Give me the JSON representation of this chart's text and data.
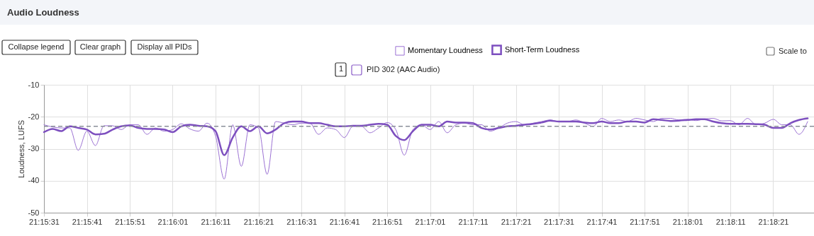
{
  "chart_data": {
    "type": "line",
    "title": "Audio Loudness",
    "ylabel": "Loudness, LUFS",
    "annotations": [
      "Collapse legend",
      "Clear graph",
      "Display all PIDs",
      "Scale to",
      "1",
      "PID 302 (AAC Audio)"
    ],
    "x": [
      21.25861,
      21.25917,
      21.25972,
      21.26028,
      21.26083,
      21.26139,
      21.26194,
      21.2625,
      21.26306,
      21.26361,
      21.26417,
      21.26472,
      21.26528,
      21.26583,
      21.26639,
      21.26694,
      21.2675,
      21.26806,
      21.26861,
      21.26917,
      21.26972,
      21.27028,
      21.27083,
      21.27139,
      21.27194,
      21.2725,
      21.27306,
      21.27361,
      21.27417,
      21.27472,
      21.27528,
      21.27583,
      21.27639,
      21.27694,
      21.2775,
      21.27806,
      21.27861,
      21.27917,
      21.27972,
      21.28028,
      21.28083,
      21.28139,
      21.28194,
      21.2825,
      21.28306,
      21.28361,
      21.28417,
      21.28472,
      21.28528,
      21.28583,
      21.28639,
      21.28694,
      21.2875,
      21.28806,
      21.28861,
      21.28917,
      21.28972,
      21.29028,
      21.29083,
      21.29139,
      21.29194,
      21.2925,
      21.29306,
      21.29361,
      21.29417,
      21.29472,
      21.29528,
      21.29583,
      21.29639,
      21.29694,
      21.2975,
      21.29806,
      21.29861,
      21.29917,
      21.29972,
      21.30028,
      21.30083,
      21.30139,
      21.30194,
      21.3025,
      21.30306,
      21.30361,
      21.30417,
      21.30472,
      21.30528,
      21.30583,
      21.30639,
      21.30694,
      21.3075,
      21.30806
    ],
    "series": [
      {
        "name": "Momentary Loudness",
        "color": "#9c72d4",
        "values": [
          -22.5,
          -23.2,
          -23.5,
          -23.5,
          -30.5,
          -24.5,
          -29.0,
          -22.8,
          -22.8,
          -24.0,
          -22.5,
          -22.5,
          -25.5,
          -23.5,
          -24.5,
          -24.0,
          -22.2,
          -23.8,
          -24.5,
          -22.0,
          -26.0,
          -39.5,
          -22.5,
          -35.5,
          -22.5,
          -23.5,
          -38.0,
          -21.5,
          -22.0,
          -22.5,
          -22.0,
          -22.0,
          -25.5,
          -23.5,
          -24.0,
          -26.5,
          -23.0,
          -23.0,
          -25.0,
          -23.5,
          -21.8,
          -24.0,
          -32.0,
          -24.0,
          -22.5,
          -24.0,
          -21.5,
          -25.0,
          -22.5,
          -22.0,
          -22.5,
          -22.5,
          -24.5,
          -23.5,
          -22.0,
          -21.5,
          -22.5,
          -22.0,
          -21.5,
          -21.0,
          -21.5,
          -21.5,
          -21.0,
          -22.0,
          -23.0,
          -20.5,
          -21.5,
          -21.0,
          -21.5,
          -20.5,
          -21.0,
          -21.5,
          -20.5,
          -20.5,
          -21.0,
          -20.8,
          -21.2,
          -20.7,
          -20.5,
          -21.3,
          -21.2,
          -22.5,
          -20.5,
          -22.5,
          -22.0,
          -20.8,
          -22.5,
          -22.5,
          -25.5,
          -21.5
        ]
      },
      {
        "name": "Short-Term Loudness",
        "color": "#7d4fbf",
        "values": [
          -24.8,
          -23.8,
          -24.5,
          -23.0,
          -23.5,
          -24.0,
          -25.5,
          -25.3,
          -24.0,
          -23.0,
          -22.7,
          -23.5,
          -23.8,
          -23.8,
          -24.0,
          -24.8,
          -23.0,
          -22.5,
          -22.8,
          -23.0,
          -24.5,
          -32.0,
          -26.5,
          -23.0,
          -24.5,
          -23.0,
          -25.2,
          -24.0,
          -22.0,
          -21.5,
          -21.5,
          -22.0,
          -22.0,
          -22.5,
          -23.0,
          -23.0,
          -22.8,
          -22.8,
          -22.5,
          -22.2,
          -22.5,
          -26.0,
          -27.3,
          -24.5,
          -22.5,
          -22.5,
          -23.0,
          -21.5,
          -21.8,
          -21.8,
          -22.0,
          -23.5,
          -24.0,
          -23.5,
          -23.0,
          -22.8,
          -22.5,
          -22.2,
          -21.8,
          -21.2,
          -21.5,
          -21.5,
          -21.5,
          -21.8,
          -22.0,
          -21.5,
          -22.0,
          -22.0,
          -21.5,
          -21.5,
          -21.8,
          -20.8,
          -21.0,
          -21.3,
          -21.2,
          -21.0,
          -20.8,
          -20.8,
          -21.5,
          -22.0,
          -22.2,
          -22.2,
          -22.2,
          -22.3,
          -22.5,
          -23.5,
          -23.5,
          -22.0,
          -21.0,
          -20.5
        ]
      }
    ],
    "xlim": [
      21.25861,
      21.30847
    ],
    "xticks": [
      {
        "value": 21.25861,
        "label": "21:15:31"
      },
      {
        "value": 21.26139,
        "label": "21:15:41"
      },
      {
        "value": 21.26417,
        "label": "21:15:51"
      },
      {
        "value": 21.26694,
        "label": "21:16:01"
      },
      {
        "value": 21.26972,
        "label": "21:16:11"
      },
      {
        "value": 21.2725,
        "label": "21:16:21"
      },
      {
        "value": 21.27528,
        "label": "21:16:31"
      },
      {
        "value": 21.27806,
        "label": "21:16:41"
      },
      {
        "value": 21.28083,
        "label": "21:16:51"
      },
      {
        "value": 21.28361,
        "label": "21:17:01"
      },
      {
        "value": 21.28639,
        "label": "21:17:11"
      },
      {
        "value": 21.28917,
        "label": "21:17:21"
      },
      {
        "value": 21.29194,
        "label": "21:17:31"
      },
      {
        "value": 21.29472,
        "label": "21:17:41"
      },
      {
        "value": 21.2975,
        "label": "21:17:51"
      },
      {
        "value": 21.30028,
        "label": "21:18:01"
      },
      {
        "value": 21.30306,
        "label": "21:18:11"
      },
      {
        "value": 21.30583,
        "label": "21:18:21"
      }
    ],
    "ylim": [
      -50,
      -10
    ],
    "yticks": [
      -50,
      -40,
      -30,
      -20,
      -10
    ],
    "ref_lines": [
      {
        "axis": "y",
        "value": -23,
        "color": "#8a8f99",
        "line_style": "dashed"
      }
    ],
    "grid": true,
    "legend": "top",
    "marker": "none",
    "line_style": "solid"
  }
}
